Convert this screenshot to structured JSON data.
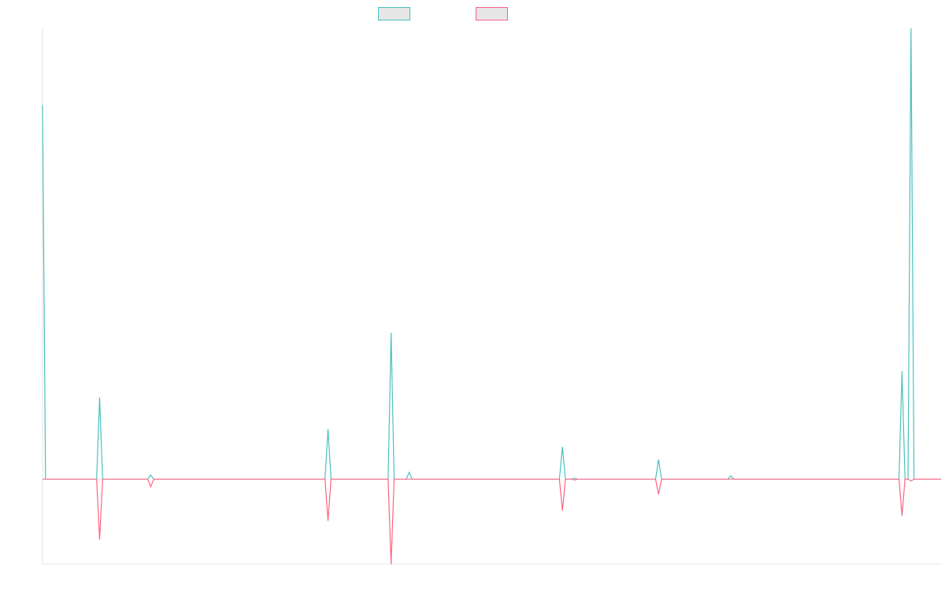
{
  "chart_data": {
    "type": "line",
    "title": "",
    "xlabel": "",
    "ylabel": "",
    "x_count": 300,
    "ylim": [
      -1.0,
      5.3
    ],
    "grid": false,
    "legend": {
      "position": "top-center",
      "entries": [
        {
          "name": "",
          "color": "#4bc0c0",
          "fill": "#e6e6e6"
        },
        {
          "name": "",
          "color": "#ff6384",
          "fill": "#e6e6e6"
        }
      ]
    },
    "series": [
      {
        "name": "",
        "color": "#4bc0c0",
        "points": [
          [
            0,
            4.4
          ],
          [
            1,
            0
          ],
          [
            18,
            0
          ],
          [
            19,
            0.96
          ],
          [
            20,
            0
          ],
          [
            35,
            0
          ],
          [
            36,
            0.05
          ],
          [
            37,
            0
          ],
          [
            94,
            0
          ],
          [
            95,
            0.59
          ],
          [
            96,
            0
          ],
          [
            115,
            0
          ],
          [
            116,
            1.72
          ],
          [
            117,
            0
          ],
          [
            121,
            0
          ],
          [
            122,
            0.08
          ],
          [
            123,
            0
          ],
          [
            172,
            0
          ],
          [
            173,
            0.38
          ],
          [
            174,
            0
          ],
          [
            176,
            0
          ],
          [
            177,
            0.01
          ],
          [
            178,
            0
          ],
          [
            204,
            0
          ],
          [
            205,
            0.23
          ],
          [
            206,
            0
          ],
          [
            228,
            0
          ],
          [
            229,
            0.04
          ],
          [
            230,
            0
          ],
          [
            285,
            0
          ],
          [
            286,
            1.27
          ],
          [
            287,
            0
          ],
          [
            288,
            0
          ],
          [
            289,
            5.3
          ],
          [
            290,
            0
          ],
          [
            299,
            0
          ]
        ]
      },
      {
        "name": "",
        "color": "#ff6384",
        "points": [
          [
            0,
            0
          ],
          [
            18,
            0
          ],
          [
            19,
            -0.71
          ],
          [
            20,
            0
          ],
          [
            35,
            0
          ],
          [
            36,
            -0.09
          ],
          [
            37,
            0
          ],
          [
            94,
            0
          ],
          [
            95,
            -0.49
          ],
          [
            96,
            0
          ],
          [
            115,
            0
          ],
          [
            116,
            -1.0
          ],
          [
            117,
            0
          ],
          [
            172,
            0
          ],
          [
            173,
            -0.37
          ],
          [
            174,
            0
          ],
          [
            176,
            0
          ],
          [
            177,
            -0.01
          ],
          [
            178,
            0
          ],
          [
            204,
            0
          ],
          [
            205,
            -0.18
          ],
          [
            206,
            0
          ],
          [
            285,
            0
          ],
          [
            286,
            -0.43
          ],
          [
            287,
            0
          ],
          [
            288,
            0
          ],
          [
            289,
            -0.02
          ],
          [
            290,
            0
          ],
          [
            299,
            0
          ]
        ]
      }
    ]
  }
}
